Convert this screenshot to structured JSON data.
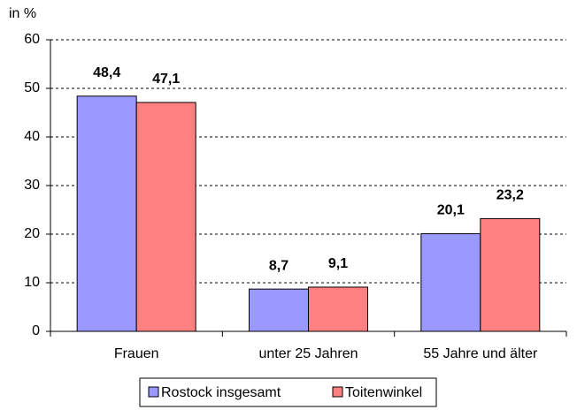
{
  "chart_data": {
    "type": "bar",
    "y_label": "in %",
    "categories": [
      "Frauen",
      "unter 25 Jahren",
      "55 Jahre und älter"
    ],
    "series": [
      {
        "name": "Rostock insgesamt",
        "color": "#9999ff",
        "values": [
          48.4,
          8.7,
          20.1
        ],
        "value_labels": [
          "48,4",
          "8,7",
          "20,1"
        ]
      },
      {
        "name": "Toitenwinkel",
        "color": "#ff8080",
        "values": [
          47.1,
          9.1,
          23.2
        ],
        "value_labels": [
          "47,1",
          "9,1",
          "23,2"
        ]
      }
    ],
    "ylim": [
      0,
      60
    ],
    "yticks": [
      0,
      10,
      20,
      30,
      40,
      50,
      60
    ],
    "grid": true,
    "legend": "bottom"
  }
}
